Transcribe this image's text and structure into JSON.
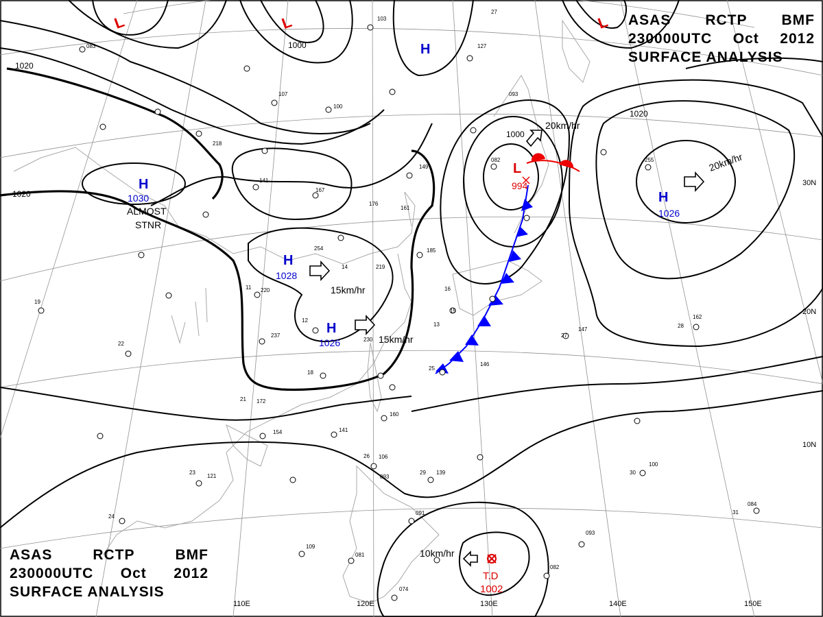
{
  "header": {
    "line1": [
      "ASAS",
      "RCTP",
      "BMF"
    ],
    "line2": [
      "230000UTC",
      "Oct",
      "2012"
    ],
    "line3": "SURFACE ANALYSIS"
  },
  "lon_labels": [
    "110E",
    "120E",
    "130E",
    "140E",
    "150E"
  ],
  "lat_labels": [
    "30N",
    "20N",
    "10N"
  ],
  "isobar_labels": [
    "1020",
    "1020",
    "1000",
    "1000",
    "1020"
  ],
  "pressure_systems": [
    {
      "type": "L",
      "color": "#dd0000"
    },
    {
      "type": "L",
      "color": "#dd0000"
    },
    {
      "type": "L",
      "color": "#dd0000"
    },
    {
      "type": "H",
      "color": "#0000cc",
      "value": "1030"
    },
    {
      "type": "H",
      "color": "#0000cc",
      "value": "1028"
    },
    {
      "type": "H",
      "color": "#0000cc",
      "value": "1026"
    },
    {
      "type": "H",
      "color": "#0000cc"
    },
    {
      "type": "H",
      "color": "#0000cc",
      "value": "1026"
    },
    {
      "type": "L",
      "color": "#dd0000",
      "value": "994"
    },
    {
      "type": "TD",
      "color": "#dd0000",
      "label": "T.D",
      "value": "1002"
    }
  ],
  "motion_labels": [
    "15km/hr",
    "15km/hr",
    "20km/hr",
    "20km/hr",
    "10km/hr"
  ],
  "annotations": [
    "ALMOST",
    "STNR"
  ],
  "colors": {
    "isobar": "#000000",
    "grid": "#909090",
    "coast": "#a0a0a0",
    "high": "#0000cc",
    "low": "#dd0000",
    "cold_front": "#0000ff",
    "warm_front": "#ee0000"
  },
  "station_numbers": [
    "083",
    "27",
    "103",
    "127",
    "093",
    "107",
    "100",
    "218",
    "141",
    "167",
    "149",
    "176",
    "161",
    "254",
    "219",
    "220",
    "237",
    "230",
    "146",
    "185",
    "082",
    "255",
    "162",
    "147",
    "172",
    "154",
    "141",
    "160",
    "106",
    "093",
    "139",
    "121",
    "091",
    "109",
    "081",
    "074",
    "082",
    "093",
    "084",
    "100",
    "28",
    "27",
    "26",
    "29",
    "30",
    "31",
    "23",
    "24",
    "25",
    "21",
    "22",
    "19",
    "18",
    "16",
    "15",
    "14",
    "13",
    "12",
    "11"
  ]
}
